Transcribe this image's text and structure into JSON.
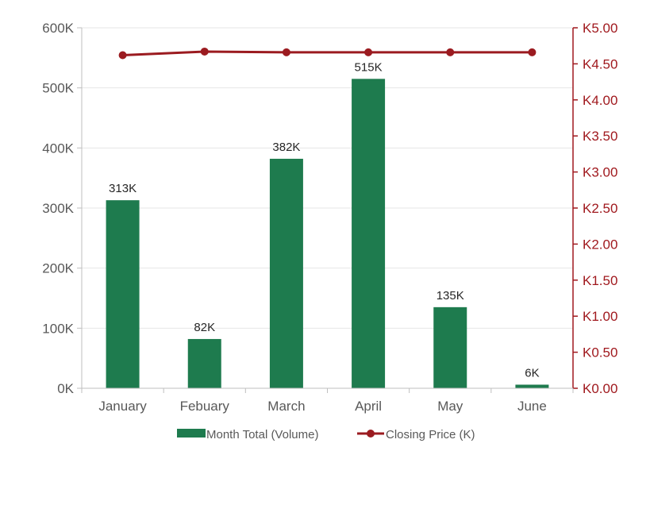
{
  "chart_data": {
    "type": "bar",
    "categories": [
      "January",
      "Febuary",
      "March",
      "April",
      "May",
      "June"
    ],
    "series": [
      {
        "name": "Month Total (Volume)",
        "type": "bar",
        "axis": "left",
        "values": [
          313000,
          82000,
          382000,
          515000,
          135000,
          6000
        ],
        "labels": [
          "313K",
          "82K",
          "382K",
          "515K",
          "135K",
          "6K"
        ],
        "color": "#1e7b4e"
      },
      {
        "name": "Closing Price (K)",
        "type": "line",
        "axis": "right",
        "values": [
          4.62,
          4.67,
          4.66,
          4.66,
          4.66,
          4.66
        ],
        "color": "#9b1b20"
      }
    ],
    "y_left": {
      "range": [
        0,
        600000
      ],
      "ticks": [
        0,
        100000,
        200000,
        300000,
        400000,
        500000,
        600000
      ],
      "tick_labels": [
        "0K",
        "100K",
        "200K",
        "300K",
        "400K",
        "500K",
        "600K"
      ]
    },
    "y_right": {
      "range": [
        0,
        5
      ],
      "ticks": [
        0,
        0.5,
        1,
        1.5,
        2,
        2.5,
        3,
        3.5,
        4,
        4.5,
        5
      ],
      "tick_labels": [
        "K0.00",
        "K0.50",
        "K1.00",
        "K1.50",
        "K2.00",
        "K2.50",
        "K3.00",
        "K3.50",
        "K4.00",
        "K4.50",
        "K5.00"
      ]
    },
    "grid": true,
    "legend_position": "bottom"
  }
}
